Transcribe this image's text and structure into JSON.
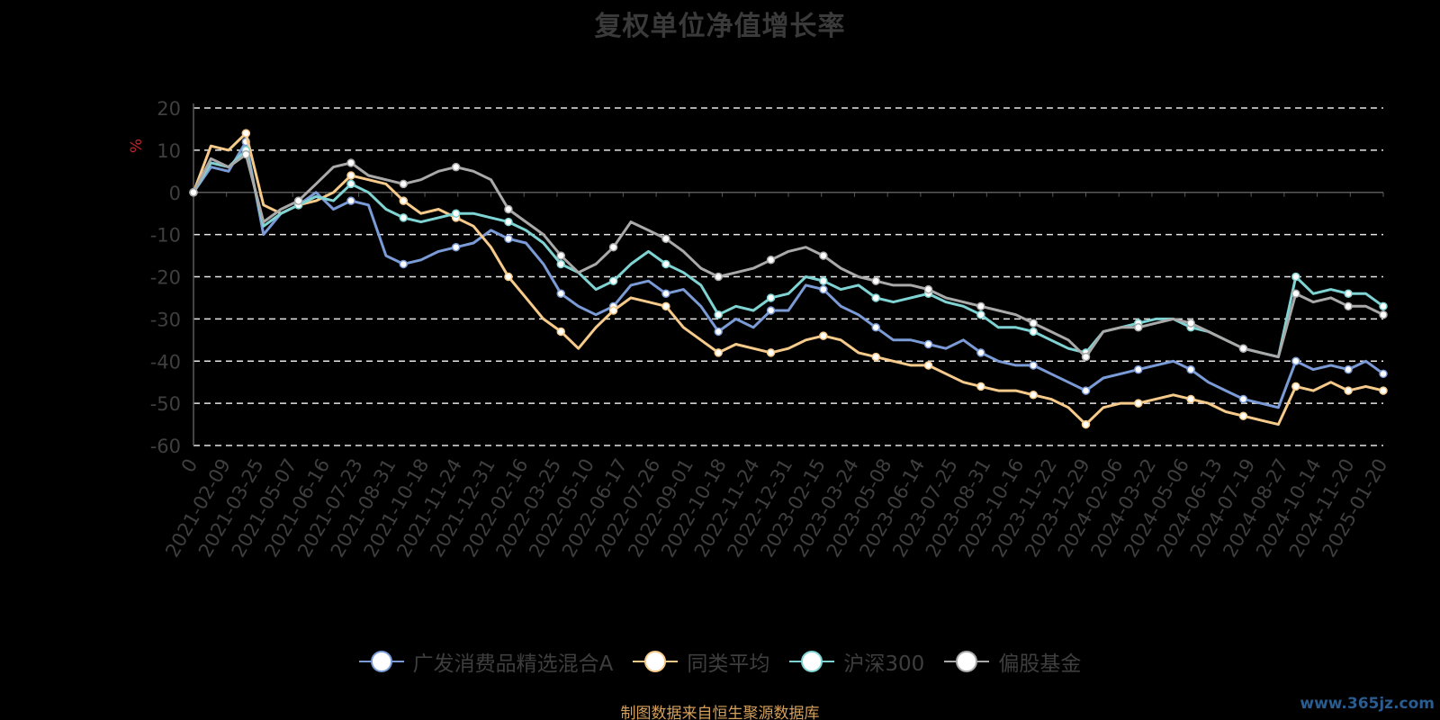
{
  "chart_data": {
    "type": "line",
    "title": "复权单位净值增长率",
    "ylabel": "%",
    "ylim": [
      -60,
      20
    ],
    "yticks": [
      "20",
      "10",
      "0",
      "-10",
      "-20",
      "-30",
      "-40",
      "-50",
      "-60"
    ],
    "grid": true,
    "legend_position": "bottom",
    "x_tick_labels": [
      "0",
      "2021-02-09",
      "2021-03-25",
      "2021-05-07",
      "2021-06-16",
      "2021-07-23",
      "2021-08-31",
      "2021-10-18",
      "2021-11-24",
      "2021-12-31",
      "2022-02-16",
      "2022-03-25",
      "2022-05-10",
      "2022-06-17",
      "2022-07-26",
      "2022-09-01",
      "2022-10-18",
      "2022-11-24",
      "2022-12-31",
      "2023-02-15",
      "2023-03-24",
      "2023-05-08",
      "2023-06-14",
      "2023-07-25",
      "2023-08-31",
      "2023-10-16",
      "2023-11-22",
      "2023-12-29",
      "2024-02-06",
      "2024-03-22",
      "2024-05-06",
      "2024-06-13",
      "2024-07-19",
      "2024-08-27",
      "2024-10-14",
      "2024-11-20",
      "2025-01-20"
    ],
    "series": [
      {
        "name": "广发消费品精选混合A",
        "color": "#7b9bd6",
        "values": [
          0,
          6,
          5,
          12,
          -10,
          -5,
          -3,
          0,
          -4,
          -2,
          -3,
          -15,
          -17,
          -16,
          -14,
          -13,
          -12,
          -9,
          -11,
          -12,
          -17,
          -24,
          -27,
          -29,
          -27,
          -22,
          -21,
          -24,
          -23,
          -27,
          -33,
          -30,
          -32,
          -28,
          -28,
          -22,
          -23,
          -27,
          -29,
          -32,
          -35,
          -35,
          -36,
          -37,
          -35,
          -38,
          -40,
          -41,
          -41,
          -43,
          -45,
          -47,
          -44,
          -43,
          -42,
          -41,
          -40,
          -42,
          -45,
          -47,
          -49,
          -50,
          -51,
          -40,
          -42,
          -41,
          -42,
          -40,
          -43
        ]
      },
      {
        "name": "同类平均",
        "color": "#f6ca8a",
        "values": [
          0,
          11,
          10,
          14,
          -3,
          -5,
          -3,
          -2,
          0,
          4,
          3,
          2,
          -2,
          -5,
          -4,
          -6,
          -8,
          -13,
          -20,
          -25,
          -30,
          -33,
          -37,
          -32,
          -28,
          -25,
          -26,
          -27,
          -32,
          -35,
          -38,
          -36,
          -37,
          -38,
          -37,
          -35,
          -34,
          -35,
          -38,
          -39,
          -40,
          -41,
          -41,
          -43,
          -45,
          -46,
          -47,
          -47,
          -48,
          -49,
          -51,
          -55,
          -51,
          -50,
          -50,
          -49,
          -48,
          -49,
          -50,
          -52,
          -53,
          -54,
          -55,
          -46,
          -47,
          -45,
          -47,
          -46,
          -47
        ]
      },
      {
        "name": "沪深300",
        "color": "#7fd3d3",
        "values": [
          0,
          7,
          6,
          10,
          -8,
          -5,
          -3,
          -1,
          -2,
          2,
          0,
          -4,
          -6,
          -7,
          -6,
          -5,
          -5,
          -6,
          -7,
          -9,
          -12,
          -17,
          -19,
          -23,
          -21,
          -17,
          -14,
          -17,
          -19,
          -22,
          -29,
          -27,
          -28,
          -25,
          -24,
          -20,
          -21,
          -23,
          -22,
          -25,
          -26,
          -25,
          -24,
          -26,
          -27,
          -29,
          -32,
          -32,
          -33,
          -35,
          -37,
          -38,
          -33,
          -32,
          -31,
          -30,
          -30,
          -32,
          -33,
          -35,
          -37,
          -38,
          -39,
          -20,
          -24,
          -23,
          -24,
          -24,
          -27
        ]
      },
      {
        "name": "偏股基金",
        "color": "#a9a9a9",
        "values": [
          0,
          8,
          6,
          9,
          -7,
          -4,
          -2,
          2,
          6,
          7,
          4,
          3,
          2,
          3,
          5,
          6,
          5,
          3,
          -4,
          -7,
          -10,
          -15,
          -19,
          -17,
          -13,
          -7,
          -9,
          -11,
          -14,
          -18,
          -20,
          -19,
          -18,
          -16,
          -14,
          -13,
          -15,
          -18,
          -20,
          -21,
          -22,
          -22,
          -23,
          -25,
          -26,
          -27,
          -28,
          -29,
          -31,
          -33,
          -35,
          -39,
          -33,
          -32,
          -32,
          -31,
          -30,
          -31,
          -33,
          -35,
          -37,
          -38,
          -39,
          -24,
          -26,
          -25,
          -27,
          -27,
          -29
        ]
      }
    ]
  },
  "source_note": "制图数据来自恒生聚源数据库",
  "watermark": "www.365jz.com"
}
